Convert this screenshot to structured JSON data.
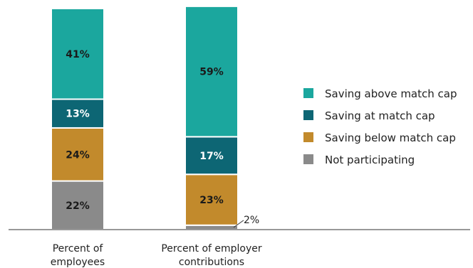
{
  "chart_data": {
    "type": "bar",
    "stacked": true,
    "categories": [
      [
        "Percent of",
        "employees"
      ],
      [
        "Percent of employer",
        "contributions"
      ]
    ],
    "series": [
      {
        "name": "Not participating",
        "color": "#8a8a8a",
        "values": [
          22,
          2
        ]
      },
      {
        "name": "Saving below match cap",
        "color": "#c28a2c",
        "values": [
          24,
          23
        ]
      },
      {
        "name": "Saving at match cap",
        "color": "#0d6674",
        "values": [
          13,
          17
        ]
      },
      {
        "name": "Saving above match cap",
        "color": "#1ba79e",
        "values": [
          41,
          59
        ]
      }
    ],
    "data_labels": [
      [
        "22%",
        "2%"
      ],
      [
        "24%",
        "23%"
      ],
      [
        "13%",
        "17%"
      ],
      [
        "41%",
        "59%"
      ]
    ],
    "legend_order": [
      "Saving above match cap",
      "Saving at match cap",
      "Saving below match cap",
      "Not participating"
    ],
    "legend_position": "right",
    "ylim": [
      0,
      100
    ],
    "title": "",
    "xlabel": "",
    "ylabel": ""
  }
}
